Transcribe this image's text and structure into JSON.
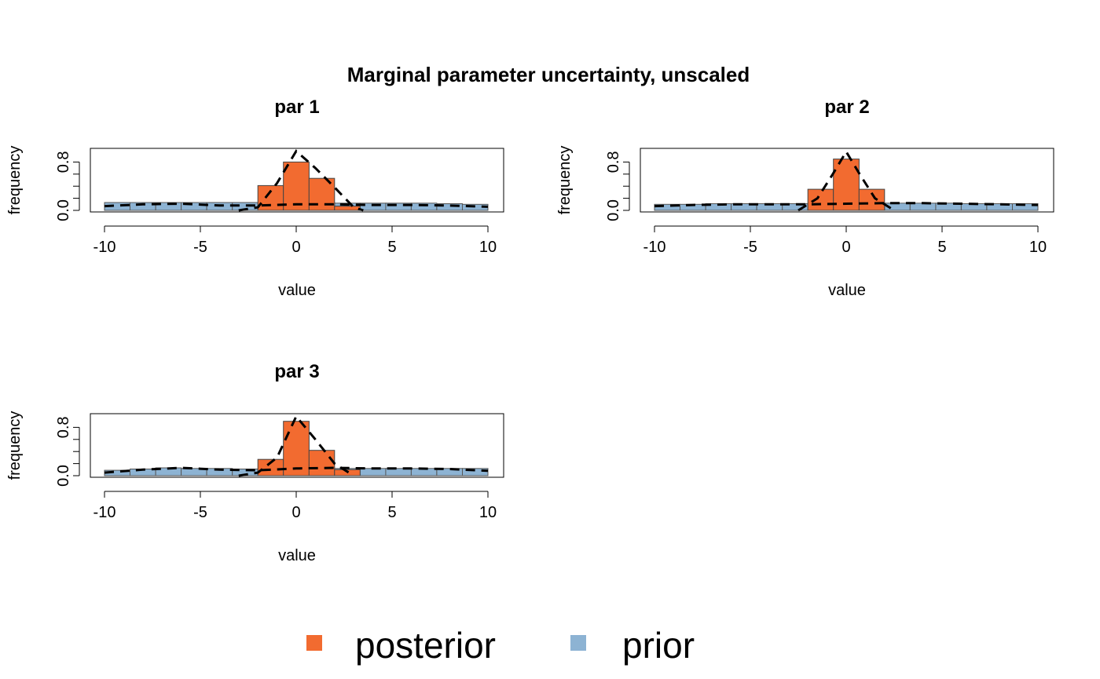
{
  "title": "Marginal parameter uncertainty, unscaled",
  "colors": {
    "posterior": "#F26B30",
    "prior": "#8DB3D3",
    "density": "#000000"
  },
  "legend": {
    "items": [
      {
        "label": "posterior",
        "color": "#F26B30"
      },
      {
        "label": "prior",
        "color": "#8DB3D3"
      }
    ]
  },
  "chart_data": [
    {
      "type": "bar",
      "title": "par 1",
      "xlabel": "value",
      "ylabel": "frequency",
      "xlim": [
        -10,
        10
      ],
      "ylim": [
        0,
        1
      ],
      "xticks": [
        "-10",
        "-5",
        "0",
        "5",
        "10"
      ],
      "yticks": [
        "0.0",
        "0.8"
      ],
      "prior_bins": [
        -10,
        -8.67,
        -7.33,
        -6,
        -4.67,
        -3.33,
        -2,
        -0.67,
        0.67,
        2,
        3.33,
        4.67,
        6,
        7.33,
        8.67,
        10
      ],
      "prior_values": [
        0.13,
        0.13,
        0.13,
        0.13,
        0.13,
        0.13,
        0.13,
        0.13,
        0.13,
        0.12,
        0.12,
        0.12,
        0.12,
        0.11,
        0.1
      ],
      "posterior_bins": [
        -2,
        -0.67,
        0.67,
        2,
        3.33
      ],
      "posterior_values": [
        0.41,
        0.8,
        0.53,
        0.07
      ],
      "prior_density": [
        [
          -10,
          0.07
        ],
        [
          -8,
          0.1
        ],
        [
          -6,
          0.11
        ],
        [
          -4,
          0.08
        ],
        [
          -2,
          0.08
        ],
        [
          0,
          0.1
        ],
        [
          2,
          0.1
        ],
        [
          4,
          0.09
        ],
        [
          6,
          0.09
        ],
        [
          8,
          0.08
        ],
        [
          10,
          0.06
        ]
      ],
      "posterior_density": [
        [
          -3,
          0.0
        ],
        [
          -2,
          0.05
        ],
        [
          -1,
          0.45
        ],
        [
          0,
          0.98
        ],
        [
          1,
          0.7
        ],
        [
          2,
          0.38
        ],
        [
          3,
          0.05
        ],
        [
          3.5,
          0.0
        ]
      ]
    },
    {
      "type": "bar",
      "title": "par 2",
      "xlabel": "value",
      "ylabel": "frequency",
      "xlim": [
        -10,
        10
      ],
      "ylim": [
        0,
        1
      ],
      "xticks": [
        "-10",
        "-5",
        "0",
        "5",
        "10"
      ],
      "yticks": [
        "0.0",
        "0.8"
      ],
      "prior_bins": [
        -10,
        -8.67,
        -7.33,
        -6,
        -4.67,
        -3.33,
        -2,
        -0.67,
        0.67,
        2,
        3.33,
        4.67,
        6,
        7.33,
        8.67,
        10
      ],
      "prior_values": [
        0.1,
        0.1,
        0.11,
        0.11,
        0.11,
        0.11,
        0.12,
        0.12,
        0.12,
        0.12,
        0.12,
        0.12,
        0.11,
        0.11,
        0.11
      ],
      "posterior_bins": [
        -2,
        -0.67,
        0.67,
        2
      ],
      "posterior_values": [
        0.35,
        0.85,
        0.35
      ],
      "prior_density": [
        [
          -10,
          0.07
        ],
        [
          -8,
          0.09
        ],
        [
          -6,
          0.1
        ],
        [
          -4,
          0.1
        ],
        [
          -2,
          0.1
        ],
        [
          0,
          0.11
        ],
        [
          2,
          0.12
        ],
        [
          4,
          0.12
        ],
        [
          6,
          0.11
        ],
        [
          8,
          0.1
        ],
        [
          10,
          0.09
        ]
      ],
      "posterior_density": [
        [
          -2.5,
          0.0
        ],
        [
          -1.5,
          0.2
        ],
        [
          -0.7,
          0.6
        ],
        [
          0,
          0.97
        ],
        [
          0.7,
          0.6
        ],
        [
          1.5,
          0.2
        ],
        [
          2.5,
          0.0
        ]
      ]
    },
    {
      "type": "bar",
      "title": "par 3",
      "xlabel": "value",
      "ylabel": "frequency",
      "xlim": [
        -10,
        10
      ],
      "ylim": [
        0,
        1
      ],
      "xticks": [
        "-10",
        "-5",
        "0",
        "5",
        "10"
      ],
      "yticks": [
        "0.0",
        "0.8"
      ],
      "prior_bins": [
        -10,
        -8.67,
        -7.33,
        -6,
        -4.67,
        -3.33,
        -2,
        -0.67,
        0.67,
        2,
        3.33,
        4.67,
        6,
        7.33,
        8.67,
        10
      ],
      "prior_values": [
        0.09,
        0.11,
        0.13,
        0.12,
        0.12,
        0.11,
        0.12,
        0.13,
        0.13,
        0.12,
        0.12,
        0.12,
        0.12,
        0.12,
        0.12
      ],
      "posterior_bins": [
        -2,
        -0.67,
        0.67,
        2,
        3.33
      ],
      "posterior_values": [
        0.27,
        0.9,
        0.42,
        0.1
      ],
      "prior_density": [
        [
          -10,
          0.05
        ],
        [
          -8,
          0.1
        ],
        [
          -6,
          0.13
        ],
        [
          -4,
          0.1
        ],
        [
          -2,
          0.09
        ],
        [
          0,
          0.12
        ],
        [
          2,
          0.13
        ],
        [
          4,
          0.12
        ],
        [
          6,
          0.12
        ],
        [
          8,
          0.11
        ],
        [
          10,
          0.08
        ]
      ],
      "posterior_density": [
        [
          -3,
          0.0
        ],
        [
          -2,
          0.05
        ],
        [
          -1,
          0.3
        ],
        [
          0,
          0.98
        ],
        [
          1,
          0.6
        ],
        [
          2,
          0.2
        ],
        [
          3,
          0.0
        ]
      ]
    }
  ]
}
